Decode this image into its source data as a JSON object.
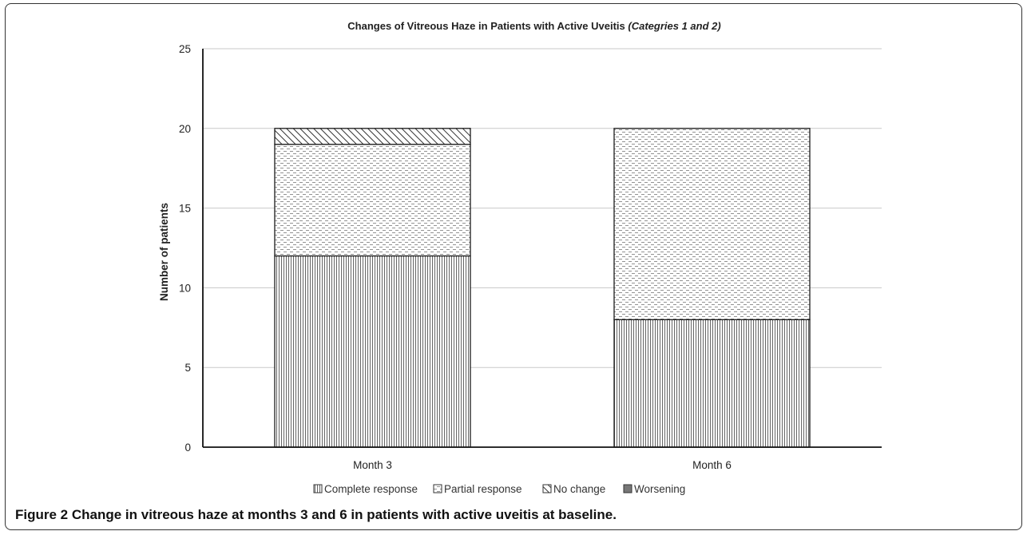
{
  "chart_data": {
    "type": "bar",
    "stacked": true,
    "title": "Changes of Vitreous Haze in Patients with Active Uveitis",
    "title_italic": "(Categries 1 and 2)",
    "xlabel": "",
    "ylabel": "Number of patients",
    "categories": [
      "Month 3",
      "Month 6"
    ],
    "ylim": [
      0,
      25
    ],
    "yticks": [
      0,
      5,
      10,
      15,
      20,
      25
    ],
    "grid": true,
    "legend_position": "bottom",
    "series": [
      {
        "name": "Complete response",
        "values": [
          12,
          8
        ],
        "pattern": "vertical-lines"
      },
      {
        "name": "Partial response",
        "values": [
          7,
          12
        ],
        "pattern": "dashes"
      },
      {
        "name": "No change",
        "values": [
          1,
          0
        ],
        "pattern": "diagonal"
      },
      {
        "name": "Worsening",
        "values": [
          0,
          0
        ],
        "pattern": "solid-gray"
      }
    ]
  },
  "caption": {
    "label": "Figure 2",
    "text": "Change in vitreous haze at months 3 and 6 in patients with active uveitis at baseline."
  }
}
